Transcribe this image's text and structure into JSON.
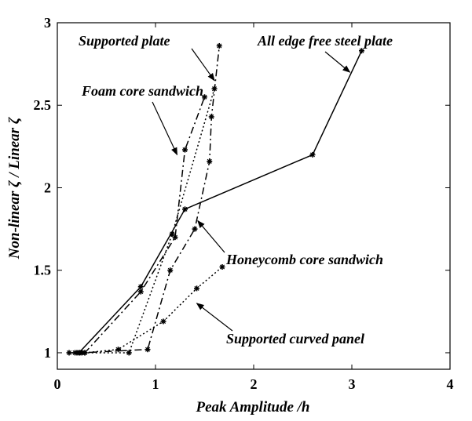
{
  "chart_data": {
    "type": "line",
    "title": "",
    "xlabel": "Peak Amplitude /h",
    "ylabel": "Non-linear ζ / Linear ζ",
    "xlim": [
      0,
      4
    ],
    "ylim": [
      0.9,
      3
    ],
    "xticks": [
      0,
      1,
      2,
      3,
      4
    ],
    "yticks": [
      1,
      1.5,
      2,
      2.5,
      3
    ],
    "xtick_labels": [
      "0",
      "1",
      "2",
      "3",
      "4"
    ],
    "ytick_labels": [
      "1",
      "1.5",
      "2",
      "2.5",
      "3"
    ],
    "grid": false,
    "legend": "none",
    "series": [
      {
        "name": "All edge free steel plate",
        "style": "solid",
        "x": [
          0.22,
          0.85,
          1.3,
          2.6,
          3.1
        ],
        "y": [
          1.0,
          1.4,
          1.87,
          2.2,
          2.83
        ]
      },
      {
        "name": "Foam core sandwich",
        "style": "dashdot",
        "x": [
          0.12,
          0.2,
          0.28,
          0.85,
          1.2,
          1.3,
          1.5
        ],
        "y": [
          1.0,
          1.0,
          1.0,
          1.37,
          1.7,
          2.23,
          2.55
        ]
      },
      {
        "name": "Supported plate",
        "style": "dashdot",
        "x": [
          0.18,
          0.25,
          0.92,
          1.15,
          1.4,
          1.55,
          1.57,
          1.65
        ],
        "y": [
          1.0,
          1.0,
          1.02,
          1.5,
          1.75,
          2.16,
          2.43,
          2.86
        ]
      },
      {
        "name": "Honeycomb core sandwich",
        "style": "dotted",
        "x": [
          0.23,
          0.73,
          1.17,
          1.6
        ],
        "y": [
          1.0,
          1.0,
          1.72,
          2.6
        ]
      },
      {
        "name": "Supported curved panel",
        "style": "dotted",
        "x": [
          0.28,
          0.62,
          1.08,
          1.42,
          1.68
        ],
        "y": [
          1.0,
          1.02,
          1.19,
          1.39,
          1.52
        ]
      }
    ],
    "annotations": [
      {
        "text": "Supported plate",
        "target": [
          1.6,
          2.65
        ]
      },
      {
        "text": "All edge free steel plate",
        "target": [
          2.98,
          2.7
        ]
      },
      {
        "text": "Foam core sandwich",
        "target": [
          1.22,
          2.2
        ]
      },
      {
        "text": "Honeycomb core sandwich",
        "target": [
          1.43,
          1.8
        ]
      },
      {
        "text": "Supported curved panel",
        "target": [
          1.42,
          1.3
        ]
      }
    ]
  }
}
